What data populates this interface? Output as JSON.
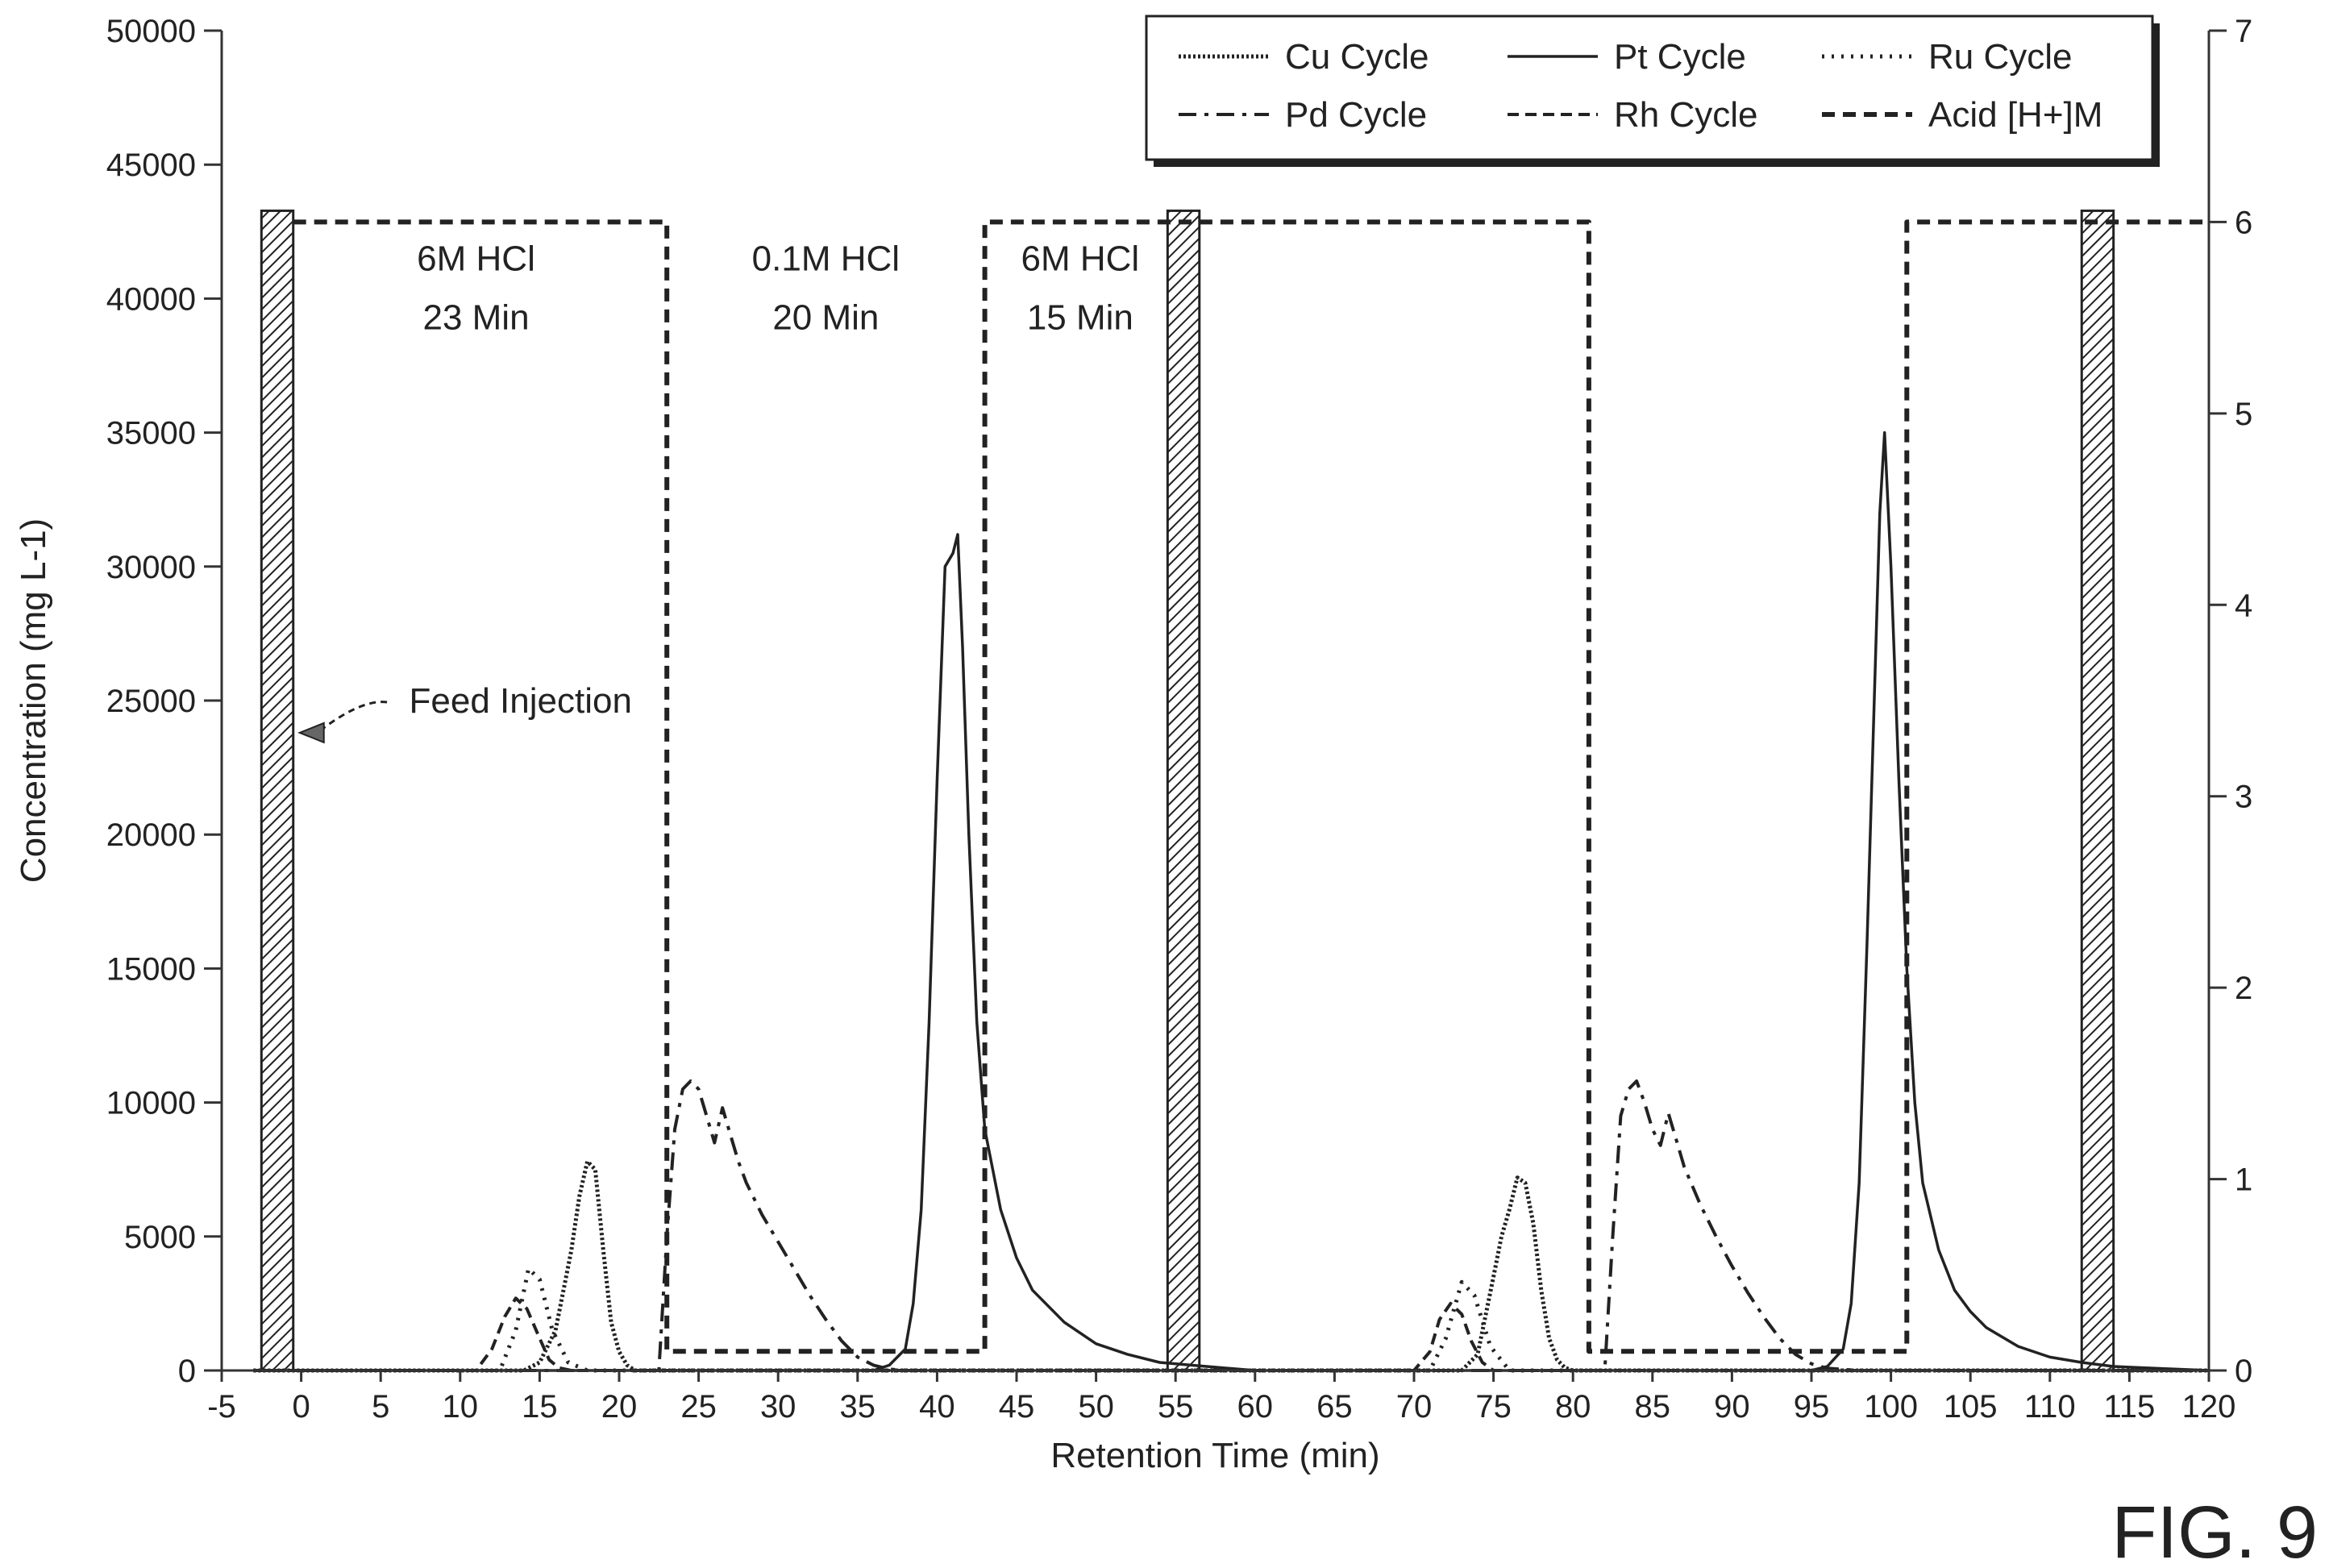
{
  "figure_label": "FIG. 9",
  "chart_data": {
    "type": "line",
    "xlabel": "Retention Time (min)",
    "ylabel": "Concentration (mg L-1)",
    "xlim": [
      -5,
      120
    ],
    "ylim": [
      0,
      50000
    ],
    "y2lim": [
      0,
      7
    ],
    "x_ticks": [
      "-5",
      "0",
      "5",
      "10",
      "15",
      "20",
      "25",
      "30",
      "35",
      "40",
      "45",
      "50",
      "55",
      "60",
      "65",
      "70",
      "75",
      "80",
      "85",
      "90",
      "95",
      "100",
      "105",
      "110",
      "115",
      "120"
    ],
    "y_ticks": [
      "0",
      "5000",
      "10000",
      "15000",
      "20000",
      "25000",
      "30000",
      "35000",
      "40000",
      "45000",
      "50000"
    ],
    "y2_ticks": [
      "0",
      "1",
      "2",
      "3",
      "4",
      "5",
      "6",
      "7"
    ],
    "grid": false,
    "legend_position": "top-right",
    "series": [
      {
        "name": "Cu Cycle",
        "style": "dense-dot",
        "axis": "left",
        "x": [
          -3,
          14,
          15,
          16,
          16.5,
          17,
          17.5,
          18,
          18.5,
          19,
          19.5,
          20,
          20.5,
          21,
          21.5,
          22,
          70,
          73,
          74,
          75,
          75.5,
          76,
          76.5,
          77,
          77.5,
          78,
          78.5,
          79,
          79.5,
          80,
          81,
          120
        ],
        "y": [
          0,
          0,
          300,
          1500,
          3000,
          4500,
          6500,
          7800,
          7500,
          4500,
          1800,
          700,
          200,
          0,
          0,
          0,
          0,
          0,
          600,
          3500,
          5000,
          6000,
          7200,
          7000,
          5500,
          3000,
          1200,
          400,
          100,
          0,
          0,
          0
        ]
      },
      {
        "name": "Pt Cycle",
        "style": "solid",
        "axis": "left",
        "x": [
          -3,
          36,
          37,
          38,
          38.5,
          39,
          39.5,
          40,
          40.5,
          41,
          41.3,
          41.6,
          42,
          42.5,
          43,
          44,
          45,
          46,
          48,
          50,
          52,
          54,
          56,
          58,
          60,
          95,
          96,
          97,
          97.5,
          98,
          98.5,
          99,
          99.3,
          99.6,
          100,
          100.5,
          101,
          101.5,
          102,
          103,
          104,
          105,
          106,
          108,
          110,
          112,
          114,
          116,
          120
        ],
        "y": [
          0,
          0,
          200,
          800,
          2500,
          6000,
          13000,
          22000,
          30000,
          30500,
          31200,
          27000,
          20000,
          13000,
          9000,
          6000,
          4200,
          3000,
          1800,
          1000,
          600,
          300,
          200,
          100,
          0,
          0,
          150,
          800,
          2500,
          7000,
          16000,
          26000,
          32000,
          35000,
          30000,
          22000,
          15000,
          10000,
          7000,
          4500,
          3000,
          2200,
          1600,
          900,
          500,
          300,
          150,
          100,
          0
        ]
      },
      {
        "name": "Ru Cycle",
        "style": "sparse-dot",
        "axis": "left",
        "x": [
          -3,
          12.5,
          13.5,
          14.3,
          15,
          15.8,
          16.8,
          18,
          71,
          72,
          73,
          73.8,
          74.8,
          76,
          120
        ],
        "y": [
          0,
          0,
          1500,
          3800,
          3400,
          1500,
          300,
          0,
          0,
          1200,
          3300,
          2800,
          900,
          0,
          0
        ]
      },
      {
        "name": "Pd Cycle",
        "style": "dash-dot",
        "axis": "left",
        "x": [
          -3,
          22.5,
          23,
          23.5,
          24,
          24.5,
          25,
          25.5,
          26,
          26.5,
          27,
          27.5,
          28,
          29,
          30,
          31,
          32,
          33,
          34,
          35,
          36,
          37,
          38,
          40,
          82,
          82.5,
          83,
          83.5,
          84,
          84.5,
          85,
          85.5,
          86,
          86.5,
          87,
          88,
          89,
          90,
          91,
          92,
          93,
          94,
          95,
          96,
          98,
          120
        ],
        "y": [
          0,
          0,
          5000,
          9000,
          10500,
          10800,
          10500,
          9500,
          8500,
          9800,
          8800,
          7800,
          7000,
          5800,
          4800,
          3800,
          2800,
          1900,
          1100,
          500,
          200,
          50,
          0,
          0,
          0,
          5000,
          9500,
          10500,
          10800,
          10000,
          9000,
          8400,
          9600,
          8600,
          7600,
          6200,
          5000,
          3900,
          2900,
          2000,
          1200,
          600,
          250,
          80,
          0,
          0
        ]
      },
      {
        "name": "Rh Cycle",
        "style": "dash",
        "axis": "left",
        "x": [
          -3,
          11,
          12,
          12.8,
          13.5,
          14.2,
          15,
          15.6,
          16.2,
          17,
          69,
          70,
          71,
          71.6,
          72.3,
          73,
          73.6,
          74.3,
          75,
          120
        ],
        "y": [
          0,
          0,
          800,
          2000,
          2700,
          2300,
          1200,
          400,
          100,
          0,
          0,
          0,
          700,
          1900,
          2500,
          2100,
          1100,
          300,
          0,
          0
        ]
      },
      {
        "name": "Acid [H+]M",
        "style": "heavy-dash",
        "axis": "right",
        "x": [
          -0.5,
          23,
          23,
          43,
          43,
          81,
          81,
          101,
          101,
          120
        ],
        "y": [
          6,
          6,
          0.1,
          0.1,
          6,
          6,
          0.1,
          0.1,
          6,
          6
        ]
      }
    ],
    "feed_injection_bars": [
      {
        "start": -2.5,
        "end": -0.5
      },
      {
        "start": 54.5,
        "end": 56.5
      },
      {
        "start": 112,
        "end": 114
      }
    ],
    "annotations": [
      {
        "text": "6M HCl",
        "x": 11,
        "y": 41500
      },
      {
        "text": "23 Min",
        "x": 11,
        "y": 39300
      },
      {
        "text": "0.1M HCl",
        "x": 33,
        "y": 41500
      },
      {
        "text": "20 Min",
        "x": 33,
        "y": 39300
      },
      {
        "text": "6M HCl",
        "x": 49,
        "y": 41500
      },
      {
        "text": "15 Min",
        "x": 49,
        "y": 39300
      },
      {
        "text": "Feed Injection",
        "x": 13.8,
        "y": 25000
      }
    ]
  }
}
